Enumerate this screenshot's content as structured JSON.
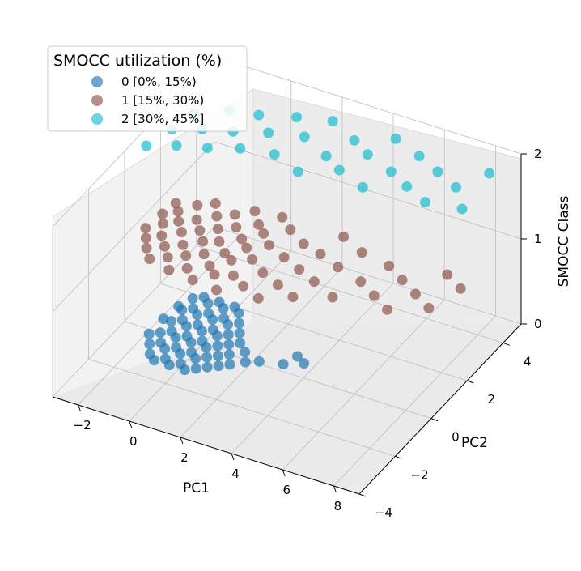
{
  "chart_data": {
    "type": "scatter",
    "projection": "3d",
    "xlabel": "PC1",
    "ylabel": "PC2",
    "zlabel": "SMOCC Class",
    "xlim": [
      -3,
      9
    ],
    "ylim": [
      -4,
      5
    ],
    "zlim": [
      0,
      2
    ],
    "xticks": [
      -2,
      0,
      2,
      4,
      6,
      8
    ],
    "yticks": [
      -4,
      -2,
      0,
      2,
      4
    ],
    "zticks": [
      0,
      1,
      2
    ],
    "grid": true,
    "legend": {
      "title": "SMOCC utilization (%)",
      "placement": "top-left",
      "entries": [
        {
          "label": "0 [0%, 15%)",
          "color": "#1f77b4"
        },
        {
          "label": "1 [15%, 30%)",
          "color": "#8c564b"
        },
        {
          "label": "2 [30%, 45%]",
          "color": "#17becf"
        }
      ]
    },
    "series": [
      {
        "name": "0 [0%, 15%)",
        "z": 0,
        "color": "#1f77b4",
        "points": [
          [
            -1.6,
            -0.6
          ],
          [
            -1.6,
            0.0
          ],
          [
            -1.6,
            0.6
          ],
          [
            -1.6,
            1.2
          ],
          [
            -1.6,
            1.8
          ],
          [
            -1.3,
            -1.0
          ],
          [
            -1.3,
            -0.4
          ],
          [
            -1.3,
            0.2
          ],
          [
            -1.3,
            0.8
          ],
          [
            -1.3,
            1.4
          ],
          [
            -1.3,
            2.0
          ],
          [
            -1.0,
            -1.2
          ],
          [
            -1.0,
            -0.6
          ],
          [
            -1.0,
            0.0
          ],
          [
            -1.0,
            0.6
          ],
          [
            -1.0,
            1.2
          ],
          [
            -1.0,
            1.8
          ],
          [
            -0.7,
            -1.0
          ],
          [
            -0.7,
            -0.4
          ],
          [
            -0.7,
            0.2
          ],
          [
            -0.7,
            0.8
          ],
          [
            -0.7,
            1.4
          ],
          [
            -0.7,
            2.0
          ],
          [
            -0.4,
            -1.2
          ],
          [
            -0.4,
            -0.6
          ],
          [
            -0.4,
            0.0
          ],
          [
            -0.4,
            0.6
          ],
          [
            -0.4,
            1.2
          ],
          [
            -0.4,
            1.8
          ],
          [
            -0.1,
            -1.0
          ],
          [
            -0.1,
            -0.4
          ],
          [
            -0.1,
            0.2
          ],
          [
            -0.1,
            0.8
          ],
          [
            -0.1,
            1.4
          ],
          [
            -0.1,
            2.0
          ],
          [
            0.2,
            -1.2
          ],
          [
            0.2,
            -0.6
          ],
          [
            0.2,
            0.0
          ],
          [
            0.2,
            0.6
          ],
          [
            0.2,
            1.2
          ],
          [
            0.2,
            1.8
          ],
          [
            0.5,
            -1.0
          ],
          [
            0.5,
            -0.4
          ],
          [
            0.5,
            0.2
          ],
          [
            0.5,
            0.8
          ],
          [
            0.5,
            1.4
          ],
          [
            0.8,
            -0.8
          ],
          [
            0.8,
            -0.2
          ],
          [
            0.8,
            0.4
          ],
          [
            0.8,
            1.0
          ],
          [
            1.1,
            -0.6
          ],
          [
            1.1,
            0.0
          ],
          [
            1.1,
            0.6
          ],
          [
            1.4,
            -0.4
          ],
          [
            1.5,
            0.3
          ],
          [
            1.8,
            -0.1
          ],
          [
            2.2,
            0.1
          ],
          [
            3.0,
            0.3
          ],
          [
            3.2,
            0.8
          ],
          [
            3.6,
            0.6
          ],
          [
            -1.9,
            -0.2
          ],
          [
            -1.9,
            0.6
          ],
          [
            -1.8,
            1.3
          ]
        ]
      },
      {
        "name": "1 [15%, 30%)",
        "z": 1,
        "color": "#8c564b",
        "points": [
          [
            -2.6,
            0.6
          ],
          [
            -2.5,
            1.4
          ],
          [
            -2.4,
            2.0
          ],
          [
            -2.3,
            0.2
          ],
          [
            -2.2,
            1.0
          ],
          [
            -2.1,
            1.7
          ],
          [
            -2.0,
            -0.2
          ],
          [
            -1.9,
            0.5
          ],
          [
            -1.8,
            1.3
          ],
          [
            -1.7,
            2.2
          ],
          [
            -1.6,
            -0.6
          ],
          [
            -1.5,
            0.1
          ],
          [
            -1.4,
            0.9
          ],
          [
            -1.3,
            1.6
          ],
          [
            -1.2,
            2.5
          ],
          [
            -1.1,
            -0.3
          ],
          [
            -1.0,
            0.4
          ],
          [
            -0.9,
            1.2
          ],
          [
            -0.8,
            2.0
          ],
          [
            -0.7,
            -0.8
          ],
          [
            -0.6,
            0.0
          ],
          [
            -0.5,
            0.8
          ],
          [
            -0.4,
            1.5
          ],
          [
            -0.3,
            2.3
          ],
          [
            -0.2,
            -0.5
          ],
          [
            -0.1,
            0.3
          ],
          [
            0.0,
            1.0
          ],
          [
            0.1,
            1.8
          ],
          [
            0.2,
            2.7
          ],
          [
            0.3,
            -0.9
          ],
          [
            0.4,
            -0.1
          ],
          [
            0.5,
            0.6
          ],
          [
            0.6,
            1.4
          ],
          [
            0.7,
            2.2
          ],
          [
            0.8,
            -0.4
          ],
          [
            0.9,
            0.4
          ],
          [
            1.0,
            1.1
          ],
          [
            1.1,
            1.9
          ],
          [
            1.2,
            2.8
          ],
          [
            1.3,
            -1.0
          ],
          [
            1.4,
            -0.2
          ],
          [
            1.5,
            0.7
          ],
          [
            1.6,
            1.5
          ],
          [
            1.8,
            2.4
          ],
          [
            2.0,
            -0.5
          ],
          [
            2.2,
            0.3
          ],
          [
            2.4,
            1.2
          ],
          [
            2.6,
            2.0
          ],
          [
            2.8,
            -0.8
          ],
          [
            3.0,
            0.0
          ],
          [
            3.2,
            0.9
          ],
          [
            3.4,
            1.8
          ],
          [
            3.6,
            2.8
          ],
          [
            3.8,
            -0.3
          ],
          [
            4.0,
            0.6
          ],
          [
            4.3,
            1.5
          ],
          [
            4.6,
            2.4
          ],
          [
            5.0,
            0.2
          ],
          [
            5.4,
            1.2
          ],
          [
            5.8,
            2.2
          ],
          [
            6.2,
            0.8
          ],
          [
            6.6,
            1.8
          ],
          [
            7.0,
            0.4
          ],
          [
            7.4,
            1.4
          ],
          [
            7.8,
            2.6
          ],
          [
            8.2,
            1.0
          ],
          [
            8.6,
            2.2
          ]
        ]
      },
      {
        "name": "2 [30%, 45%]",
        "z": 2,
        "color": "#17becf",
        "points": [
          [
            -2.5,
            0.5
          ],
          [
            -2.2,
            1.5
          ],
          [
            -2.0,
            2.4
          ],
          [
            -1.6,
            0.9
          ],
          [
            -1.3,
            1.9
          ],
          [
            -1.0,
            3.0
          ],
          [
            -0.6,
            1.2
          ],
          [
            -0.3,
            2.2
          ],
          [
            0.0,
            3.2
          ],
          [
            0.4,
            1.6
          ],
          [
            0.8,
            2.6
          ],
          [
            1.2,
            3.6
          ],
          [
            1.6,
            1.8
          ],
          [
            2.0,
            2.9
          ],
          [
            2.4,
            3.9
          ],
          [
            2.8,
            1.4
          ],
          [
            3.2,
            2.4
          ],
          [
            3.6,
            3.4
          ],
          [
            4.0,
            2.0
          ],
          [
            4.4,
            3.0
          ],
          [
            4.8,
            4.0
          ],
          [
            5.2,
            1.6
          ],
          [
            5.6,
            2.6
          ],
          [
            6.0,
            3.6
          ],
          [
            6.5,
            2.2
          ],
          [
            7.0,
            3.2
          ],
          [
            7.5,
            1.8
          ],
          [
            8.0,
            2.8
          ],
          [
            8.6,
            3.8
          ],
          [
            8.8,
            2.0
          ]
        ]
      }
    ]
  }
}
